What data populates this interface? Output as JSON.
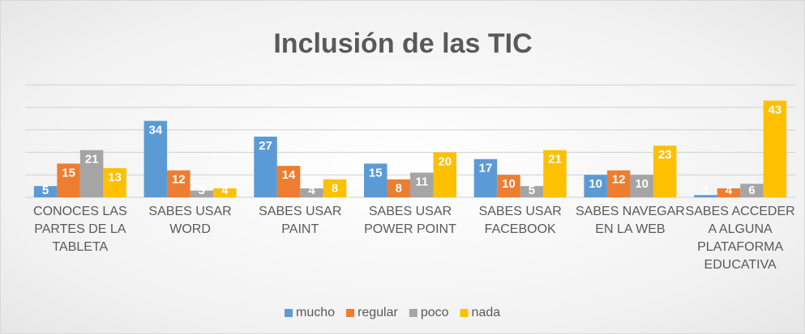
{
  "chart_data": {
    "type": "bar",
    "title": "Inclusión de las TIC",
    "categories": [
      "CONOCES LAS PARTES DE LA TABLETA",
      "SABES USAR WORD",
      "SABES USAR PAINT",
      "SABES USAR POWER POINT",
      "SABES USAR FACEBOOK",
      "SABES NAVEGAR EN LA WEB",
      "SABES ACCEDER A ALGUNA PLATAFORMA EDUCATIVA"
    ],
    "series": [
      {
        "name": "mucho",
        "color": "#5b9bd5",
        "values": [
          5,
          34,
          27,
          15,
          17,
          10,
          1
        ]
      },
      {
        "name": "regular",
        "color": "#ed7d31",
        "values": [
          15,
          12,
          14,
          8,
          10,
          12,
          4
        ]
      },
      {
        "name": "poco",
        "color": "#a5a5a5",
        "values": [
          21,
          3,
          4,
          11,
          5,
          10,
          6
        ]
      },
      {
        "name": "nada",
        "color": "#ffc000",
        "values": [
          13,
          4,
          8,
          20,
          21,
          23,
          43
        ]
      }
    ],
    "ylim": [
      0,
      50
    ],
    "yticks": [
      0,
      10,
      20,
      30,
      40,
      50
    ],
    "grid": true,
    "legend": "bottom"
  }
}
